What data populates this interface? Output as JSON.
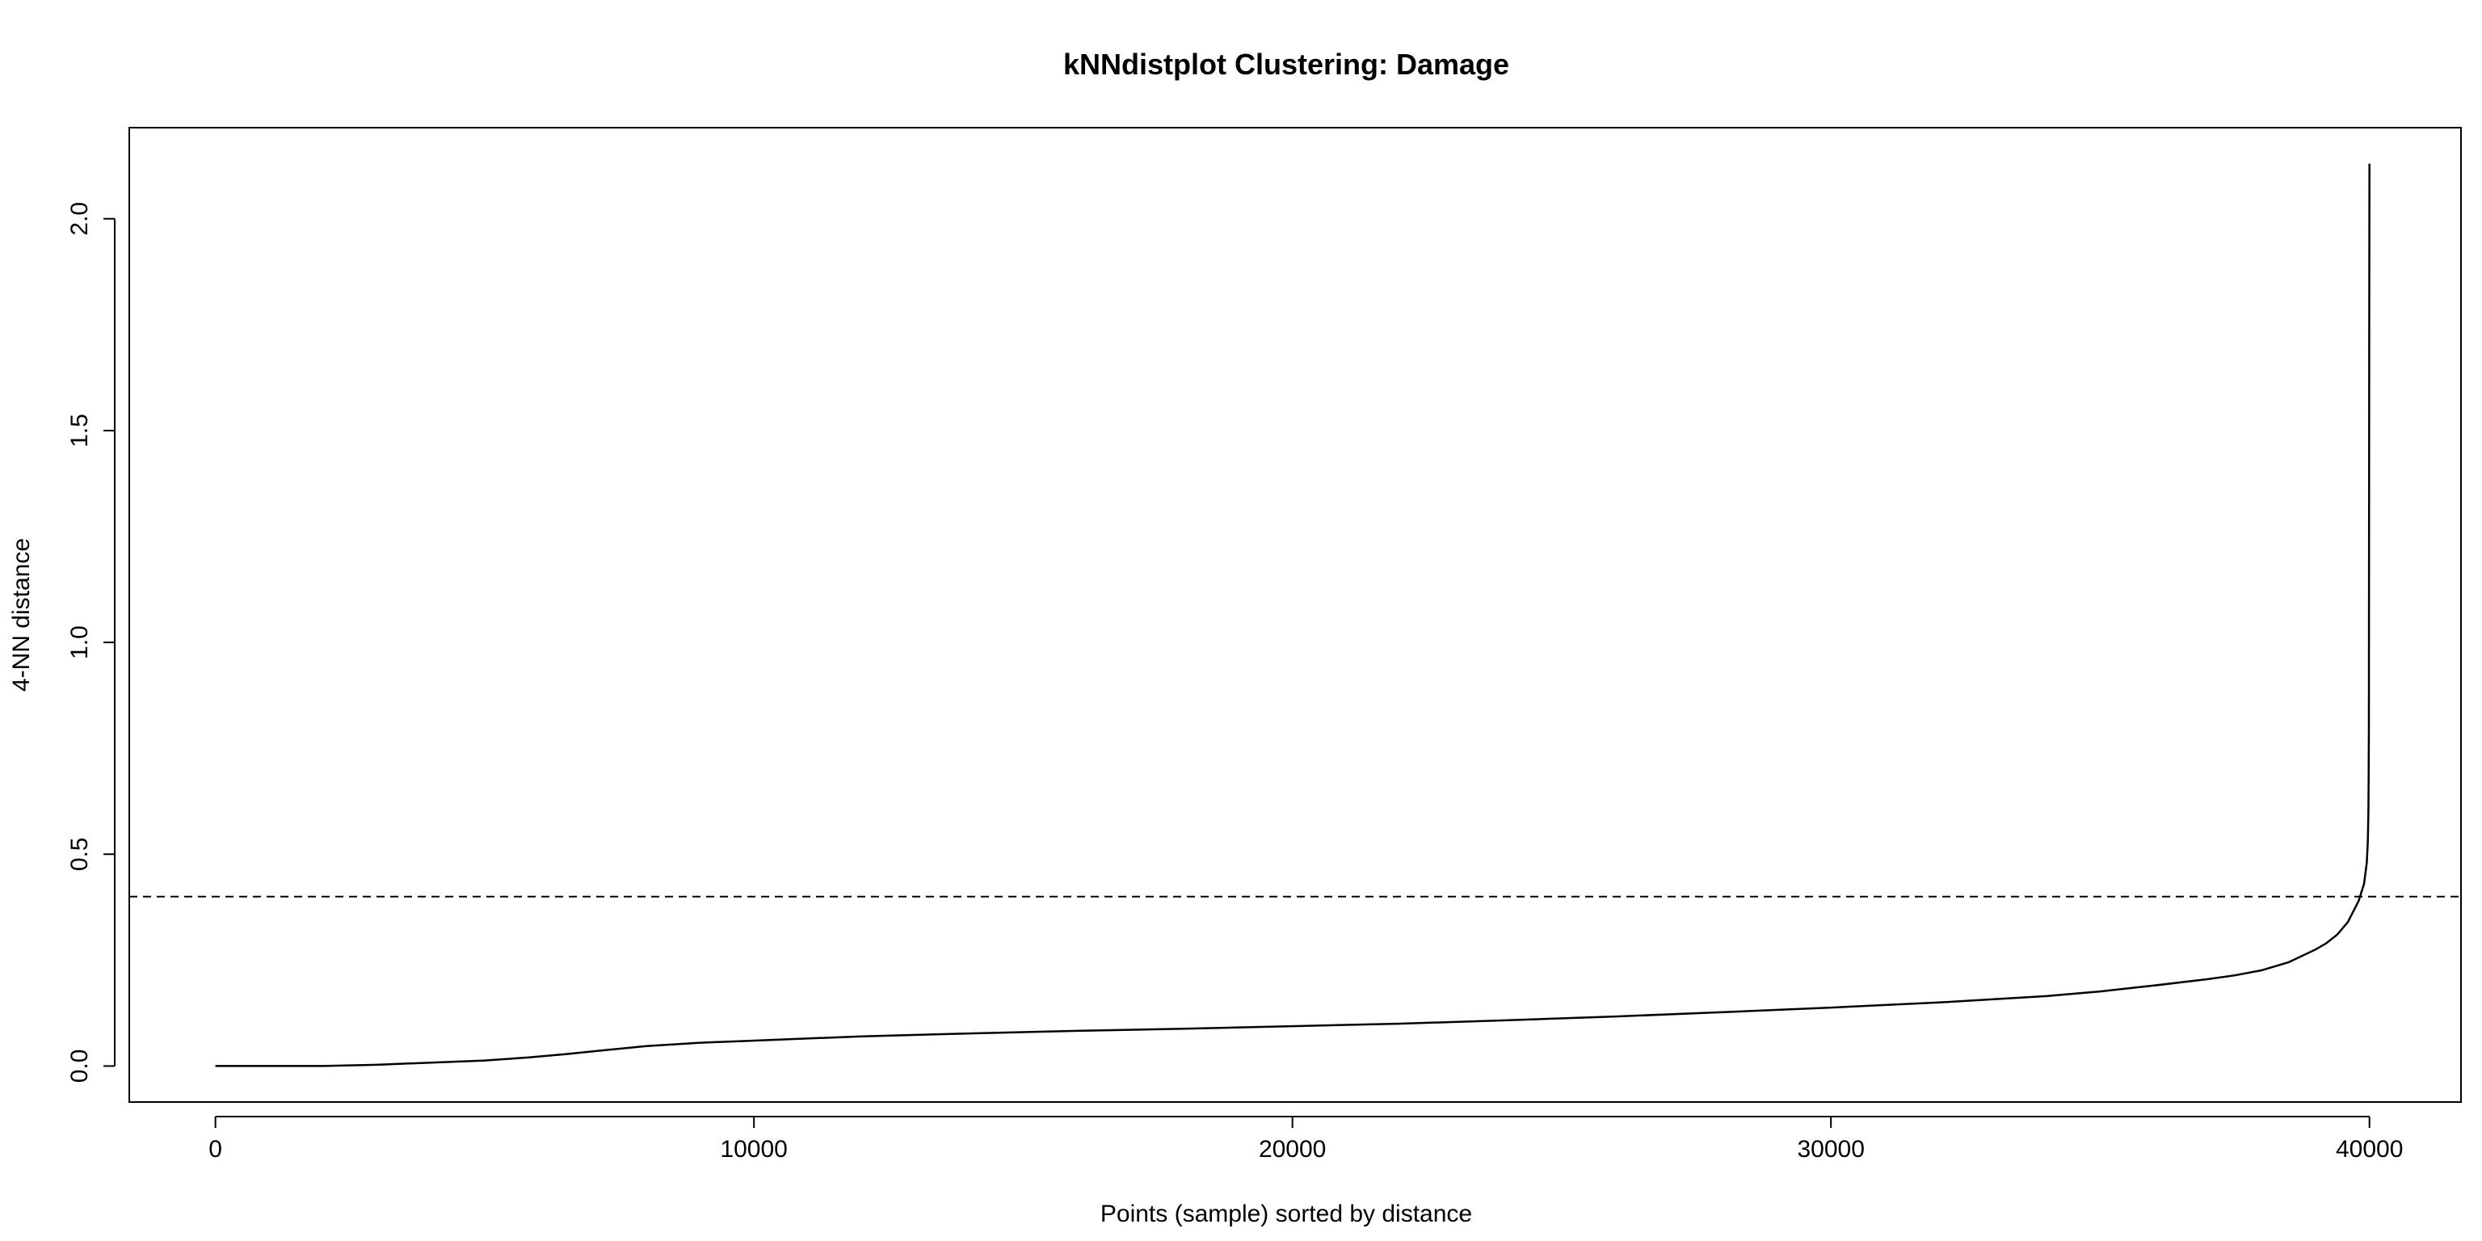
{
  "chart_data": {
    "type": "line",
    "title": "kNNdistplot Clustering: Damage",
    "xlabel": "Points (sample) sorted by distance",
    "ylabel": "4-NN distance",
    "xlim": [
      -1600,
      41700
    ],
    "ylim": [
      -0.085,
      2.215
    ],
    "x_ticks": [
      0,
      10000,
      20000,
      30000,
      40000
    ],
    "x_tick_labels": [
      "0",
      "10000",
      "20000",
      "30000",
      "40000"
    ],
    "y_ticks": [
      0.0,
      0.5,
      1.0,
      1.5,
      2.0
    ],
    "y_tick_labels": [
      "0.0",
      "0.5",
      "1.0",
      "1.5",
      "2.0"
    ],
    "grid": false,
    "legend": "none",
    "line_color": "#000000",
    "threshold": {
      "y": 0.4,
      "style": "dashed"
    },
    "series": [
      {
        "x": [
          0,
          1000,
          2000,
          3000,
          4000,
          5000,
          5800,
          6500,
          7200,
          8000,
          9000,
          10000,
          12000,
          14000,
          16000,
          18000,
          20000,
          22000,
          24000,
          26000,
          28000,
          30000,
          32000,
          34000,
          35000,
          36000,
          37000,
          37500,
          38000,
          38500,
          39000,
          39200,
          39400,
          39600,
          39800,
          39900,
          39950,
          39970,
          39980,
          39985,
          39990,
          39995,
          40000
        ],
        "values": [
          0.0,
          0.0,
          0.0,
          0.003,
          0.008,
          0.013,
          0.02,
          0.028,
          0.037,
          0.047,
          0.055,
          0.06,
          0.07,
          0.077,
          0.083,
          0.088,
          0.094,
          0.1,
          0.108,
          0.117,
          0.127,
          0.138,
          0.15,
          0.165,
          0.176,
          0.19,
          0.205,
          0.214,
          0.226,
          0.245,
          0.275,
          0.29,
          0.31,
          0.34,
          0.39,
          0.43,
          0.48,
          0.53,
          0.6,
          0.68,
          0.8,
          1.7,
          2.13
        ]
      }
    ]
  }
}
